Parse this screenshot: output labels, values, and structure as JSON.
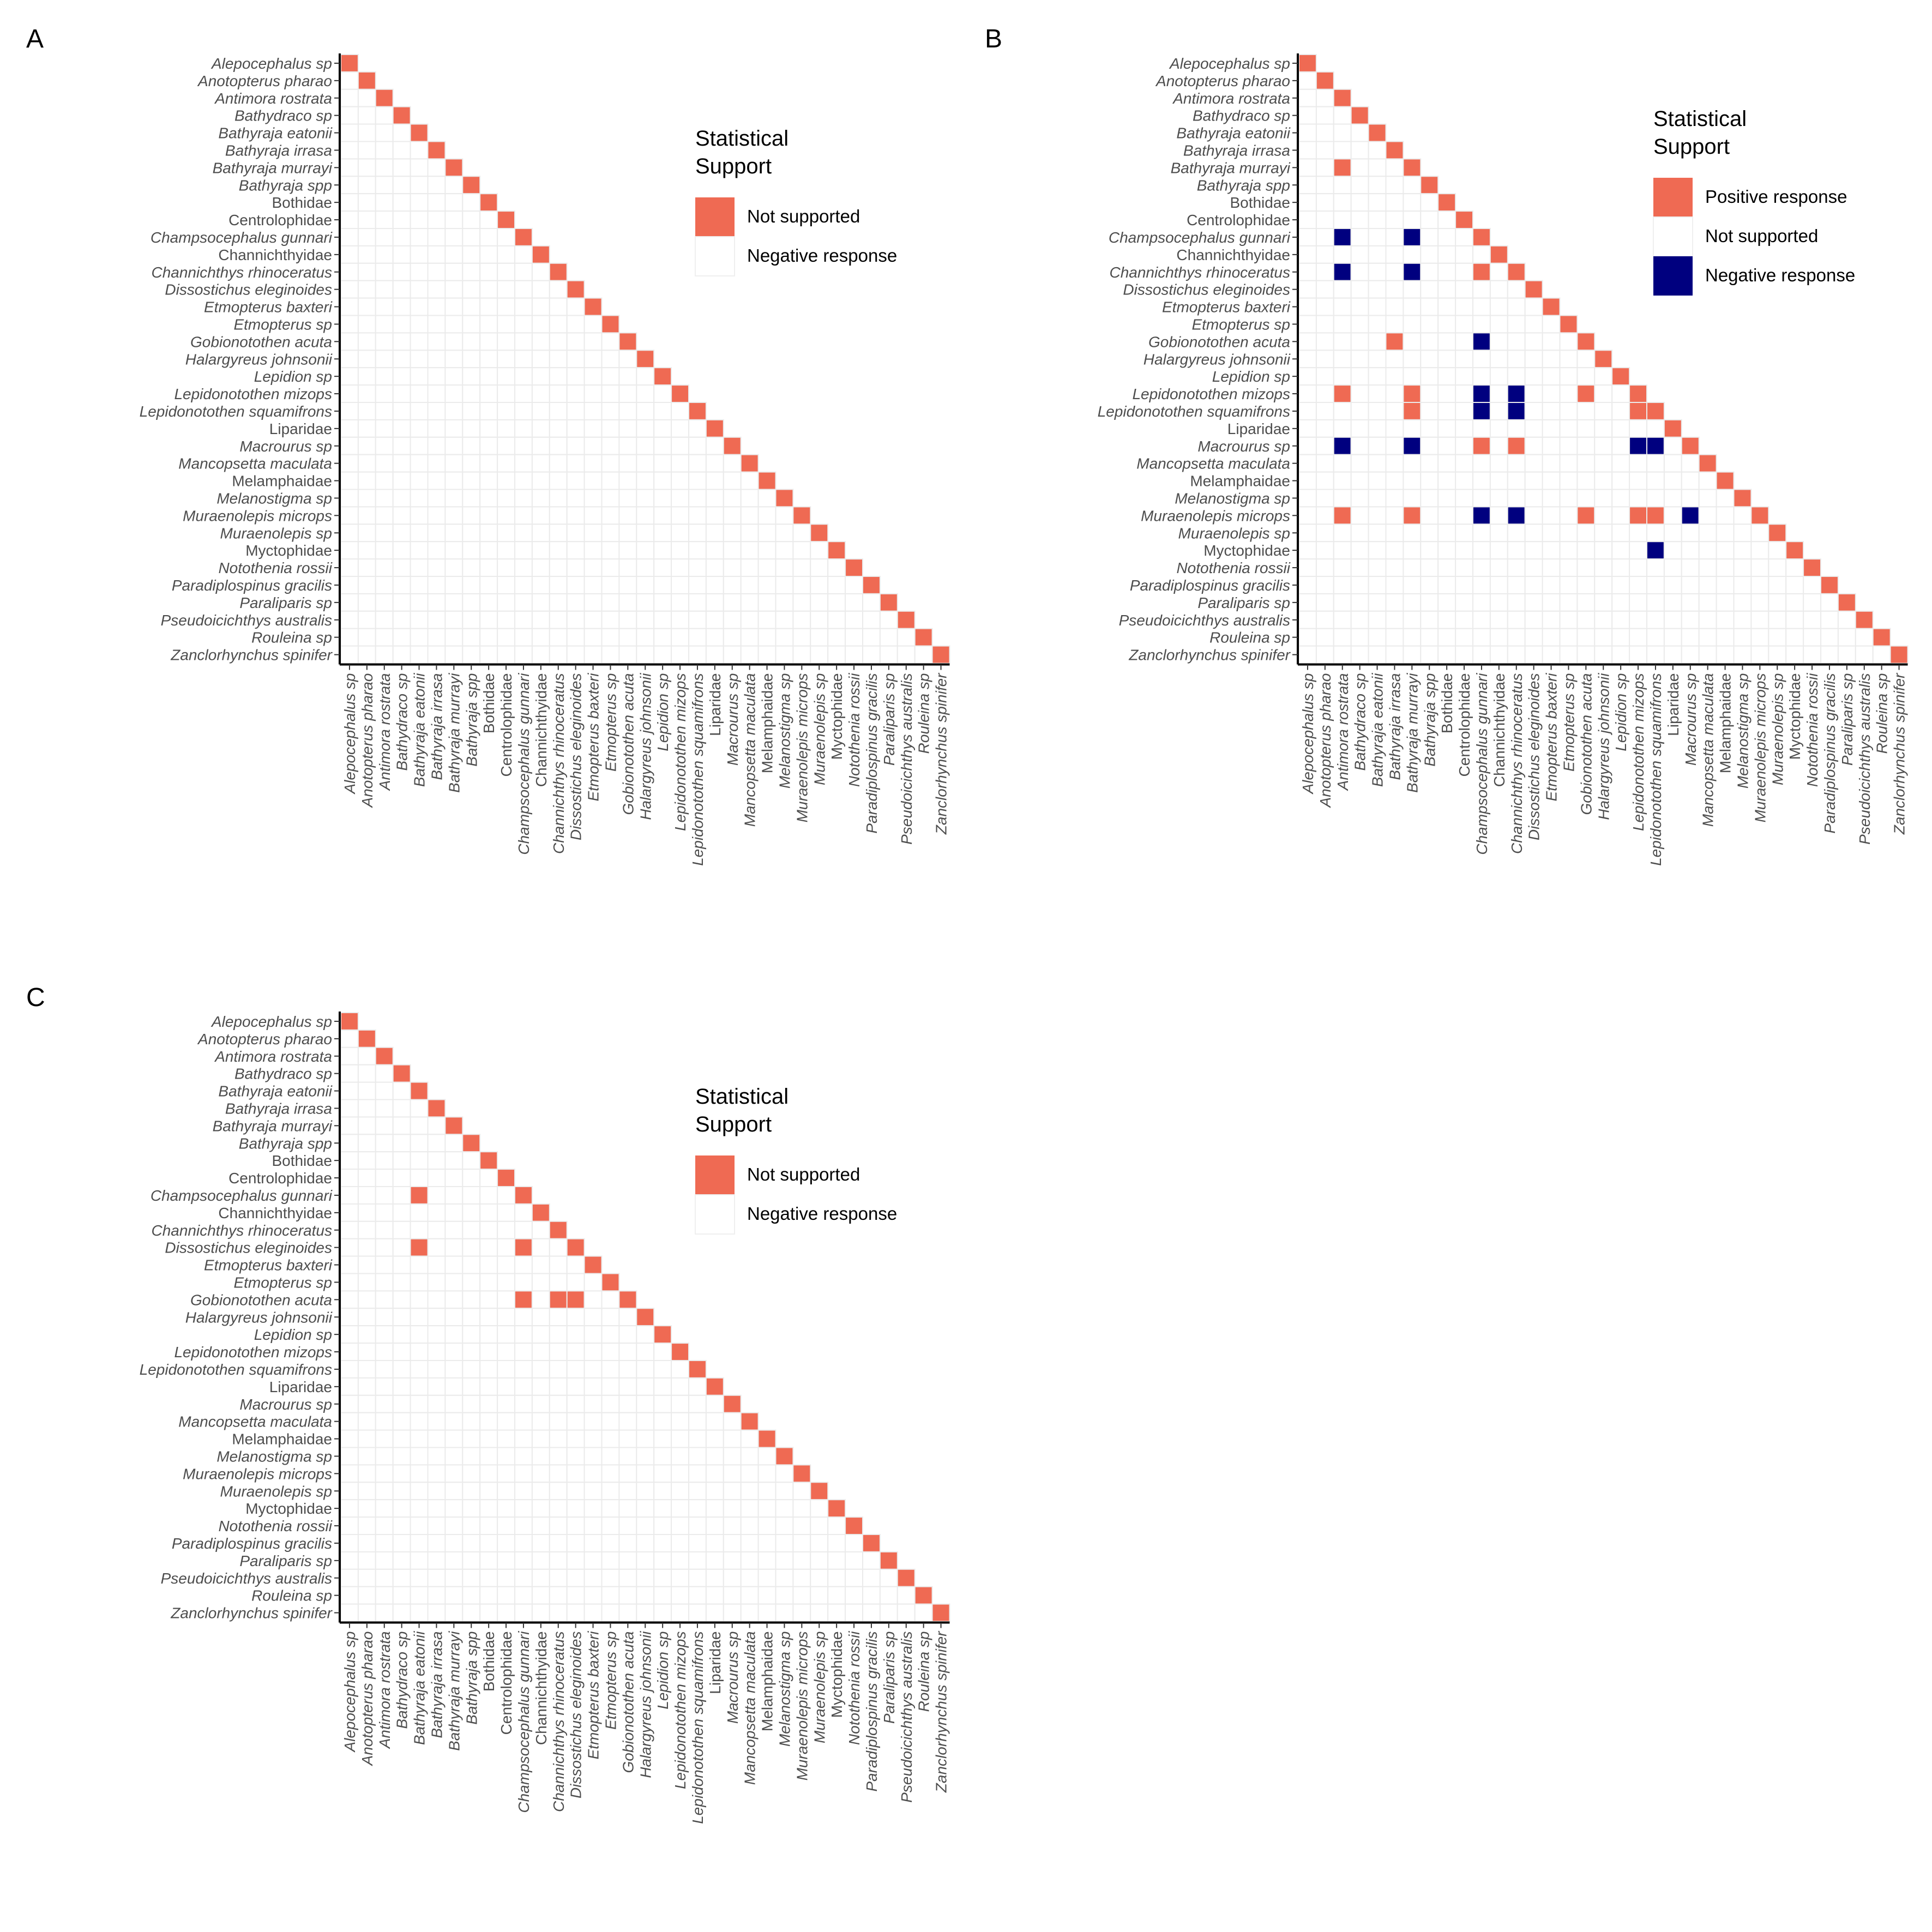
{
  "figure": {
    "species": [
      "Alepocephalus sp",
      "Anotopterus pharao",
      "Antimora rostrata",
      "Bathydraco sp",
      "Bathyraja eatonii",
      "Bathyraja irrasa",
      "Bathyraja murrayi",
      "Bathyraja spp",
      "Bothidae",
      "Centrolophidae",
      "Champsocephalus gunnari",
      "Channichthyidae",
      "Channichthys rhinoceratus",
      "Dissostichus eleginoides",
      "Etmopterus baxteri",
      "Etmopterus sp",
      "Gobionotothen acuta",
      "Halargyreus johnsonii",
      "Lepidion sp",
      "Lepidonotothen mizops",
      "Lepidonotothen squamifrons",
      "Liparidae",
      "Macrourus sp",
      "Mancopsetta maculata",
      "Melamphaidae",
      "Melanostigma sp",
      "Muraenolepis microps",
      "Muraenolepis sp",
      "Myctophidae",
      "Notothenia rossii",
      "Paradiplospinus gracilis",
      "Paraliparis sp",
      "Pseudoicichthys australis",
      "Rouleina sp",
      "Zanclorhynchus spinifer"
    ],
    "italic": [
      true,
      true,
      true,
      true,
      true,
      true,
      true,
      true,
      false,
      false,
      true,
      false,
      true,
      true,
      true,
      true,
      true,
      true,
      true,
      true,
      true,
      false,
      true,
      true,
      false,
      true,
      true,
      true,
      false,
      true,
      true,
      true,
      true,
      true,
      true
    ],
    "colors": {
      "positive": "#EF6A53",
      "negative": "#00007F",
      "grid": "#EBEBEB",
      "axis": "#000000",
      "tick_text": "#4D4D4D"
    }
  },
  "chart_data": [
    {
      "type": "heatmap",
      "panel": "A",
      "legend": {
        "title_lines": [
          "Statistical",
          "Support"
        ],
        "placement": "right",
        "entries": [
          {
            "label": "Not supported",
            "fill": "#EF6A53"
          },
          {
            "label": "Negative response",
            "fill": "#FFFFFF"
          }
        ]
      },
      "cells": [],
      "diagonal_fill": "#EF6A53"
    },
    {
      "type": "heatmap",
      "panel": "B",
      "legend": {
        "title_lines": [
          "Statistical",
          "Support"
        ],
        "placement": "right",
        "entries": [
          {
            "label": "Positive response",
            "fill": "#EF6A53"
          },
          {
            "label": "Not supported",
            "fill": "#FFFFFF"
          },
          {
            "label": "Negative response",
            "fill": "#00007F"
          }
        ]
      },
      "cells": [
        {
          "row": "Bathyraja murrayi",
          "col": "Antimora rostrata",
          "value": "positive"
        },
        {
          "row": "Champsocephalus gunnari",
          "col": "Antimora rostrata",
          "value": "negative"
        },
        {
          "row": "Champsocephalus gunnari",
          "col": "Bathyraja murrayi",
          "value": "negative"
        },
        {
          "row": "Channichthys rhinoceratus",
          "col": "Antimora rostrata",
          "value": "negative"
        },
        {
          "row": "Channichthys rhinoceratus",
          "col": "Bathyraja murrayi",
          "value": "negative"
        },
        {
          "row": "Channichthys rhinoceratus",
          "col": "Champsocephalus gunnari",
          "value": "positive"
        },
        {
          "row": "Gobionotothen acuta",
          "col": "Bathyraja irrasa",
          "value": "positive"
        },
        {
          "row": "Gobionotothen acuta",
          "col": "Champsocephalus gunnari",
          "value": "negative"
        },
        {
          "row": "Lepidonotothen mizops",
          "col": "Antimora rostrata",
          "value": "positive"
        },
        {
          "row": "Lepidonotothen mizops",
          "col": "Bathyraja murrayi",
          "value": "positive"
        },
        {
          "row": "Lepidonotothen mizops",
          "col": "Champsocephalus gunnari",
          "value": "negative"
        },
        {
          "row": "Lepidonotothen mizops",
          "col": "Channichthys rhinoceratus",
          "value": "negative"
        },
        {
          "row": "Lepidonotothen mizops",
          "col": "Gobionotothen acuta",
          "value": "positive"
        },
        {
          "row": "Lepidonotothen squamifrons",
          "col": "Bathyraja murrayi",
          "value": "positive"
        },
        {
          "row": "Lepidonotothen squamifrons",
          "col": "Champsocephalus gunnari",
          "value": "negative"
        },
        {
          "row": "Lepidonotothen squamifrons",
          "col": "Channichthys rhinoceratus",
          "value": "negative"
        },
        {
          "row": "Lepidonotothen squamifrons",
          "col": "Lepidonotothen mizops",
          "value": "positive"
        },
        {
          "row": "Macrourus sp",
          "col": "Antimora rostrata",
          "value": "negative"
        },
        {
          "row": "Macrourus sp",
          "col": "Bathyraja murrayi",
          "value": "negative"
        },
        {
          "row": "Macrourus sp",
          "col": "Champsocephalus gunnari",
          "value": "positive"
        },
        {
          "row": "Macrourus sp",
          "col": "Channichthys rhinoceratus",
          "value": "positive"
        },
        {
          "row": "Macrourus sp",
          "col": "Lepidonotothen mizops",
          "value": "negative"
        },
        {
          "row": "Macrourus sp",
          "col": "Lepidonotothen squamifrons",
          "value": "negative"
        },
        {
          "row": "Muraenolepis microps",
          "col": "Antimora rostrata",
          "value": "positive"
        },
        {
          "row": "Muraenolepis microps",
          "col": "Bathyraja murrayi",
          "value": "positive"
        },
        {
          "row": "Muraenolepis microps",
          "col": "Champsocephalus gunnari",
          "value": "negative"
        },
        {
          "row": "Muraenolepis microps",
          "col": "Channichthys rhinoceratus",
          "value": "negative"
        },
        {
          "row": "Muraenolepis microps",
          "col": "Gobionotothen acuta",
          "value": "positive"
        },
        {
          "row": "Muraenolepis microps",
          "col": "Lepidonotothen mizops",
          "value": "positive"
        },
        {
          "row": "Muraenolepis microps",
          "col": "Lepidonotothen squamifrons",
          "value": "positive"
        },
        {
          "row": "Muraenolepis microps",
          "col": "Macrourus sp",
          "value": "negative"
        },
        {
          "row": "Myctophidae",
          "col": "Lepidonotothen squamifrons",
          "value": "negative"
        }
      ],
      "diagonal_fill": "#EF6A53"
    },
    {
      "type": "heatmap",
      "panel": "C",
      "legend": {
        "title_lines": [
          "Statistical",
          "Support"
        ],
        "placement": "right",
        "entries": [
          {
            "label": "Not supported",
            "fill": "#EF6A53"
          },
          {
            "label": "Negative response",
            "fill": "#FFFFFF"
          }
        ]
      },
      "cells": [
        {
          "row": "Champsocephalus gunnari",
          "col": "Bathyraja eatonii",
          "value": "positive"
        },
        {
          "row": "Dissostichus eleginoides",
          "col": "Bathyraja eatonii",
          "value": "positive"
        },
        {
          "row": "Dissostichus eleginoides",
          "col": "Champsocephalus gunnari",
          "value": "positive"
        },
        {
          "row": "Gobionotothen acuta",
          "col": "Champsocephalus gunnari",
          "value": "positive"
        },
        {
          "row": "Gobionotothen acuta",
          "col": "Channichthys rhinoceratus",
          "value": "positive"
        },
        {
          "row": "Gobionotothen acuta",
          "col": "Dissostichus eleginoides",
          "value": "positive"
        }
      ],
      "diagonal_fill": "#EF6A53"
    }
  ]
}
